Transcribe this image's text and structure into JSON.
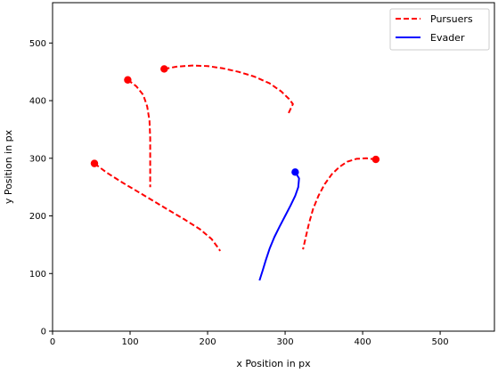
{
  "chart_data": {
    "type": "line",
    "title": "",
    "xlabel": "x Position in px",
    "ylabel": "y Position in px",
    "xlim": [
      0,
      570
    ],
    "ylim": [
      0,
      570
    ],
    "xticks": [
      0,
      100,
      200,
      300,
      400,
      500
    ],
    "yticks": [
      0,
      100,
      200,
      300,
      400,
      500
    ],
    "grid": false,
    "legend": {
      "placement": "top-right",
      "entries": [
        {
          "label": "Pursuers",
          "color": "#ff0000",
          "style": "dashed"
        },
        {
          "label": "Evader",
          "color": "#0000ff",
          "style": "solid"
        }
      ]
    },
    "pursuers": {
      "name": "Pursuers",
      "color": "#ff0000",
      "style": "dashed",
      "paths": [
        {
          "points": [
            [
              54,
              291
            ],
            [
              70,
              275
            ],
            [
              90,
              258
            ],
            [
              110,
              242
            ],
            [
              130,
              226
            ],
            [
              150,
              210
            ],
            [
              170,
              194
            ],
            [
              190,
              177
            ],
            [
              205,
              160
            ],
            [
              215,
              142
            ],
            [
              216,
              139
            ]
          ],
          "marker": [
            54,
            291
          ]
        },
        {
          "points": [
            [
              97,
              436
            ],
            [
              108,
              425
            ],
            [
              117,
              410
            ],
            [
              122,
              390
            ],
            [
              125,
              365
            ],
            [
              126,
              335
            ],
            [
              126,
              300
            ],
            [
              126,
              272
            ],
            [
              126,
              250
            ]
          ],
          "marker": [
            97,
            436
          ]
        },
        {
          "points": [
            [
              144,
              455
            ],
            [
              160,
              459
            ],
            [
              180,
              461
            ],
            [
              200,
              460
            ],
            [
              220,
              456
            ],
            [
              240,
              450
            ],
            [
              260,
              442
            ],
            [
              280,
              430
            ],
            [
              295,
              416
            ],
            [
              305,
              403
            ],
            [
              310,
              394
            ],
            [
              304,
              377
            ]
          ],
          "marker": [
            144,
            455
          ]
        },
        {
          "points": [
            [
              417,
              298
            ],
            [
              405,
              300
            ],
            [
              392,
              299
            ],
            [
              380,
              294
            ],
            [
              370,
              285
            ],
            [
              360,
              272
            ],
            [
              351,
              255
            ],
            [
              343,
              235
            ],
            [
              336,
              212
            ],
            [
              331,
              188
            ],
            [
              327,
              165
            ],
            [
              323,
              142
            ]
          ],
          "marker": [
            417,
            298
          ]
        }
      ]
    },
    "evader": {
      "name": "Evader",
      "color": "#0000ff",
      "style": "solid",
      "paths": [
        {
          "points": [
            [
              313,
              276
            ],
            [
              318,
              265
            ],
            [
              317,
              250
            ],
            [
              313,
              235
            ],
            [
              307,
              218
            ],
            [
              300,
              200
            ],
            [
              293,
              182
            ],
            [
              286,
              163
            ],
            [
              280,
              143
            ],
            [
              275,
              123
            ],
            [
              271,
              105
            ],
            [
              267,
              88
            ]
          ],
          "marker": [
            313,
            276
          ]
        }
      ]
    }
  }
}
